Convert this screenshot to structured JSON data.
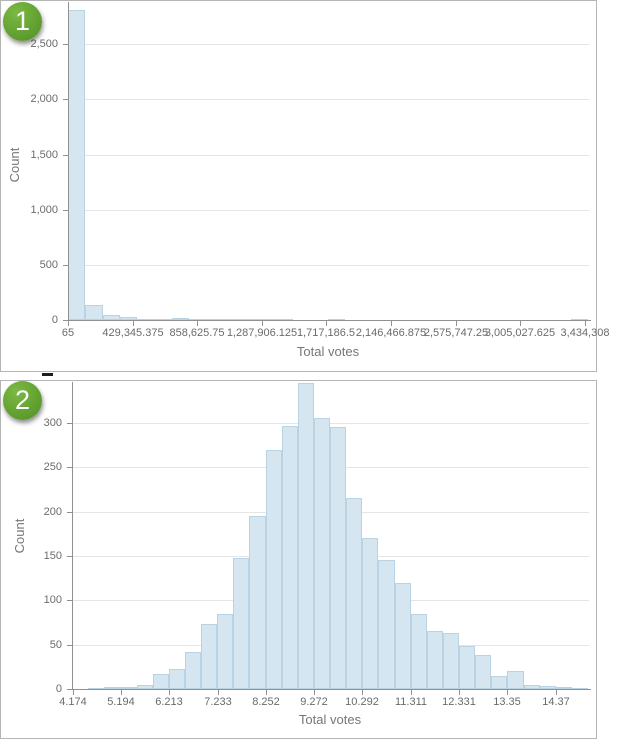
{
  "badges": [
    {
      "label": "1"
    },
    {
      "label": "2"
    }
  ],
  "chart_data": [
    {
      "type": "bar",
      "subtype": "histogram",
      "title": "",
      "xlabel": "Total votes",
      "ylabel": "Count",
      "x_tick_labels": [
        "65",
        "429,345.375",
        "858,625.75",
        "1,287,906.125",
        "1,717,186.5",
        "2,146,466.875",
        "2,575,747.25",
        "3,005,027.625",
        "3,434,308"
      ],
      "y_tick_labels": [
        "0",
        "500",
        "1,000",
        "1,500",
        "2,000",
        "2,500"
      ],
      "y_tick_values": [
        0,
        500,
        1000,
        1500,
        2000,
        2500
      ],
      "ylim": [
        0,
        2810
      ],
      "bin_start": 65,
      "bin_width": 114474.8,
      "n_bins": 30,
      "values": [
        2810,
        132,
        48,
        26,
        12,
        5,
        15,
        5,
        3,
        3,
        2,
        2,
        1,
        0,
        0,
        1,
        0,
        0,
        0,
        0,
        0,
        0,
        0,
        0,
        0,
        0,
        0,
        0,
        0,
        1
      ],
      "grid": "horizontal",
      "legend": "none"
    },
    {
      "type": "bar",
      "subtype": "histogram",
      "title": "",
      "xlabel": "Total votes",
      "ylabel": "Count",
      "x_tick_labels": [
        "4.174",
        "5.194",
        "6.213",
        "7.233",
        "8.252",
        "9.272",
        "10.292",
        "11.311",
        "12.331",
        "13.35",
        "14.37"
      ],
      "y_tick_labels": [
        "0",
        "50",
        "100",
        "150",
        "200",
        "250",
        "300"
      ],
      "y_tick_values": [
        0,
        50,
        100,
        150,
        200,
        250,
        300
      ],
      "ylim": [
        0,
        345
      ],
      "bin_start": 4.174,
      "bin_width": 0.3186,
      "n_bins": 32,
      "values": [
        0,
        1,
        2,
        2,
        5,
        17,
        23,
        42,
        73,
        85,
        148,
        195,
        270,
        297,
        345,
        305,
        295,
        215,
        170,
        145,
        120,
        85,
        65,
        63,
        48,
        38,
        15,
        20,
        4,
        3,
        2,
        1
      ],
      "grid": "horizontal",
      "legend": "none"
    }
  ],
  "colors": {
    "background": "#ffffff",
    "panel_border": "#b5b5b5",
    "badge_green": "#61a232",
    "badge_text": "#ffffff",
    "bar_fill": "#d6e6f1",
    "bar_stroke": "#b9d3e4",
    "axis_line": "#919191",
    "grid_line": "#e5e5e5",
    "tick_label": "#6b6b6b",
    "axis_title": "#767676"
  }
}
